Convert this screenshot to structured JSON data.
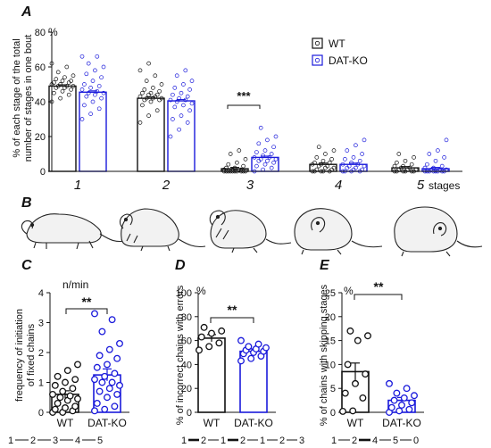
{
  "panel_labels": {
    "A": "A",
    "B": "B",
    "C": "C",
    "D": "D",
    "E": "E"
  },
  "colors": {
    "wt": "#111111",
    "dat": "#1a1adb"
  },
  "panelA": {
    "unit": "%",
    "ylabel_line1": "% of each stage of the total",
    "ylabel_line2": "number of stages in one bout",
    "yticks": [
      "0",
      "20",
      "40",
      "60",
      "80"
    ],
    "legend_wt": "WT",
    "legend_dat": "DAT-KO",
    "stage_labels": [
      "1",
      "2",
      "3",
      "4",
      "5"
    ],
    "xlabel_suffix": "stages",
    "sig": "***"
  },
  "panelB": {
    "description_icon": "mouse-sequence-drawing"
  },
  "panelC": {
    "unit": "n/min",
    "ylabel_line1": "frequency of initiation",
    "ylabel_line2": "of fixed chains",
    "yticks": [
      "0",
      "1",
      "2",
      "3",
      "4"
    ],
    "xticks": [
      "WT",
      "DAT-KO"
    ],
    "sig": "**",
    "chain": [
      "1",
      "2",
      "3",
      "4",
      "5"
    ]
  },
  "panelD": {
    "unit": "%",
    "ylabel": "% of incorrect chains with errors",
    "yticks": [
      "0",
      "20",
      "40",
      "60",
      "80",
      "100"
    ],
    "xticks": [
      "WT",
      "DAT-KO"
    ],
    "sig": "**",
    "chain": [
      "1",
      "2",
      "1",
      "2",
      "1",
      "2",
      "3"
    ]
  },
  "panelE": {
    "unit": "%",
    "ylabel": "% of chains with skipping stages",
    "yticks": [
      "0",
      "5",
      "10",
      "15",
      "20",
      "25"
    ],
    "xticks": [
      "WT",
      "DAT-KO"
    ],
    "sig": "**",
    "chain": [
      "1",
      "2",
      "4",
      "5",
      "0"
    ]
  },
  "chart_data": [
    {
      "type": "bar",
      "panel": "A",
      "ylabel": "% of each stage of the total number of stages in one bout",
      "ylim": [
        0,
        80
      ],
      "categories": [
        "1",
        "2",
        "3",
        "4",
        "5"
      ],
      "series": [
        {
          "name": "WT",
          "values": [
            49,
            42,
            1.5,
            4,
            2
          ],
          "points": [
            [
              40,
              42,
              44,
              45,
              46,
              47,
              48,
              48,
              49,
              49,
              49,
              50,
              50,
              51,
              51,
              52,
              52,
              53,
              54,
              55,
              57,
              60,
              62
            ],
            [
              28,
              32,
              35,
              38,
              40,
              41,
              41,
              42,
              42,
              42,
              43,
              43,
              44,
              44,
              45,
              45,
              46,
              47,
              48,
              50,
              52,
              55,
              58,
              62
            ],
            [
              0,
              0,
              0,
              0,
              0,
              0,
              0,
              0,
              0,
              0,
              0.5,
              1,
              1,
              1,
              2,
              2,
              3,
              4,
              5,
              7,
              10,
              12
            ],
            [
              0,
              0,
              0,
              0,
              0,
              1,
              1,
              2,
              2,
              3,
              3,
              4,
              4,
              5,
              5,
              6,
              7,
              8,
              10,
              12,
              14
            ],
            [
              0,
              0,
              0,
              0,
              0,
              0,
              1,
              1,
              1,
              2,
              2,
              3,
              3,
              4,
              5,
              6,
              8,
              10
            ]
          ]
        },
        {
          "name": "DAT-KO",
          "values": [
            45.5,
            40.5,
            8,
            4,
            1.5
          ],
          "points": [
            [
              30,
              33,
              36,
              38,
              40,
              42,
              43,
              44,
              45,
              45,
              46,
              47,
              48,
              49,
              50,
              52,
              54,
              56,
              58,
              60,
              62,
              66,
              66
            ],
            [
              20,
              24,
              28,
              30,
              32,
              35,
              37,
              38,
              39,
              40,
              41,
              41,
              42,
              43,
              44,
              45,
              47,
              48,
              50,
              52,
              55,
              58
            ],
            [
              0,
              1,
              2,
              3,
              4,
              5,
              6,
              6,
              7,
              7,
              8,
              8,
              9,
              10,
              11,
              12,
              14,
              16,
              18,
              20,
              25
            ],
            [
              0,
              0,
              0,
              0,
              1,
              1,
              2,
              2,
              3,
              3,
              4,
              4,
              5,
              6,
              7,
              8,
              10,
              12,
              15,
              18
            ],
            [
              0,
              0,
              0,
              0,
              0,
              0,
              0,
              0,
              1,
              1,
              1,
              2,
              2,
              3,
              4,
              6,
              8,
              10,
              12,
              18
            ]
          ]
        }
      ],
      "annotations": [
        "***"
      ]
    },
    {
      "type": "bar",
      "panel": "C",
      "unit": "n/min",
      "ylabel": "frequency of initiation of fixed chains",
      "ylim": [
        0,
        4
      ],
      "categories": [
        "WT",
        "DAT-KO"
      ],
      "values": [
        0.6,
        1.25
      ],
      "errors": [
        0.12,
        0.2
      ],
      "points": [
        [
          0,
          0,
          0.05,
          0.1,
          0.15,
          0.2,
          0.3,
          0.4,
          0.45,
          0.5,
          0.55,
          0.6,
          0.7,
          0.8,
          0.9,
          1.0,
          1.1,
          1.2,
          1.4,
          1.6
        ],
        [
          0.05,
          0.1,
          0.2,
          0.3,
          0.5,
          0.6,
          0.7,
          0.8,
          0.9,
          1.0,
          1.0,
          1.1,
          1.2,
          1.3,
          1.5,
          1.6,
          1.8,
          1.9,
          2.1,
          2.3,
          2.7,
          3.1,
          3.3
        ]
      ],
      "annotations": [
        "**"
      ]
    },
    {
      "type": "bar",
      "panel": "D",
      "unit": "%",
      "ylabel": "% of incorrect chains with errors",
      "ylim": [
        0,
        100
      ],
      "categories": [
        "WT",
        "DAT-KO"
      ],
      "values": [
        62,
        51
      ],
      "errors": [
        3,
        2
      ],
      "points": [
        [
          52,
          55,
          58,
          63,
          66,
          68,
          71
        ],
        [
          43,
          45,
          47,
          49,
          50,
          51,
          52,
          53,
          54,
          55,
          57,
          60
        ]
      ],
      "annotations": [
        "**"
      ]
    },
    {
      "type": "bar",
      "panel": "E",
      "unit": "%",
      "ylabel": "% of chains with skipping stages",
      "ylim": [
        0,
        25
      ],
      "categories": [
        "WT",
        "DAT-KO"
      ],
      "values": [
        8.5,
        2.5
      ],
      "errors": [
        1.8,
        0.6
      ],
      "points": [
        [
          0.2,
          0.3,
          3,
          4,
          6,
          8,
          10,
          15,
          16,
          17
        ],
        [
          0,
          0.3,
          0.6,
          1,
          1.5,
          2,
          2.5,
          3,
          3.5,
          4,
          5,
          6
        ]
      ],
      "annotations": [
        "**"
      ]
    }
  ]
}
